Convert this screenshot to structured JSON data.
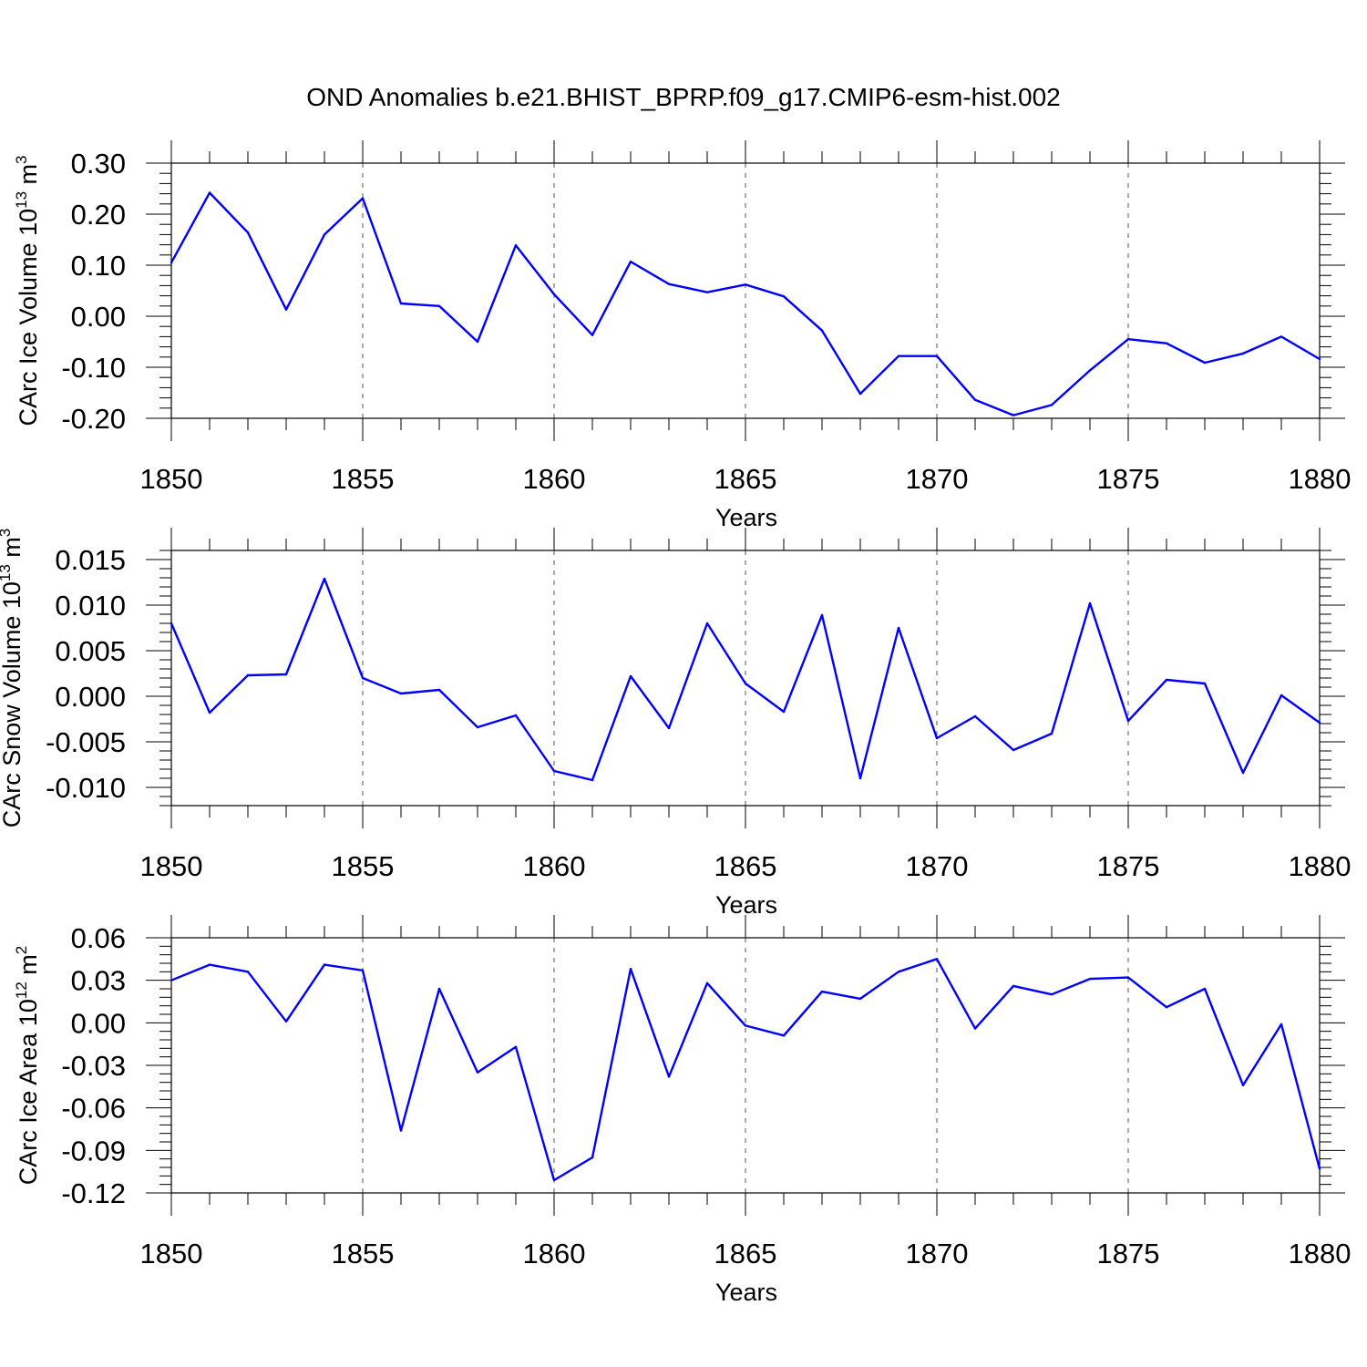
{
  "title": "OND Anomalies b.e21.BHIST_BPRP.f09_g17.CMIP6-esm-hist.002",
  "colors": {
    "line": "#0000ff",
    "axis": "#000000",
    "grid": "#555555"
  },
  "chart_data": [
    {
      "type": "line",
      "name": "ice-volume",
      "ylabel": "CArc Ice Volume 10",
      "ylabel_exp": "13",
      "ylabel_unit": " m",
      "ylabel_unit_exp": "3",
      "xlabel": "Years",
      "xlim": [
        1850,
        1880
      ],
      "ylim": [
        -0.2,
        0.3
      ],
      "x_ticks": [
        1850,
        1855,
        1860,
        1865,
        1870,
        1875,
        1880
      ],
      "x_tick_labels": [
        "1850",
        "1855",
        "1860",
        "1865",
        "1870",
        "1875",
        "1880"
      ],
      "y_ticks": [
        -0.2,
        -0.1,
        0.0,
        0.1,
        0.2,
        0.3
      ],
      "y_tick_labels": [
        "-0.20",
        "-0.10",
        "0.00",
        "0.10",
        "0.20",
        "0.30"
      ],
      "grid": "vertical dashed",
      "x": [
        1850,
        1851,
        1852,
        1853,
        1854,
        1855,
        1856,
        1857,
        1858,
        1859,
        1860,
        1861,
        1862,
        1863,
        1864,
        1865,
        1866,
        1867,
        1868,
        1869,
        1870,
        1871,
        1872,
        1873,
        1874,
        1875,
        1876,
        1877,
        1878,
        1879,
        1880
      ],
      "values": [
        0.105,
        0.242,
        0.164,
        0.013,
        0.16,
        0.231,
        0.025,
        0.02,
        -0.05,
        0.139,
        0.043,
        -0.037,
        0.107,
        0.063,
        0.047,
        0.062,
        0.039,
        -0.028,
        -0.152,
        -0.078,
        -0.078,
        -0.164,
        -0.194,
        -0.174,
        -0.106,
        -0.045,
        -0.053,
        -0.091,
        -0.073,
        -0.04,
        -0.084
      ]
    },
    {
      "type": "line",
      "name": "snow-volume",
      "ylabel": "CArc Snow Volume 10",
      "ylabel_exp": "13",
      "ylabel_unit": " m",
      "ylabel_unit_exp": "3",
      "xlabel": "Years",
      "xlim": [
        1850,
        1880
      ],
      "ylim": [
        -0.012,
        0.016
      ],
      "x_ticks": [
        1850,
        1855,
        1860,
        1865,
        1870,
        1875,
        1880
      ],
      "x_tick_labels": [
        "1850",
        "1855",
        "1860",
        "1865",
        "1870",
        "1875",
        "1880"
      ],
      "y_ticks": [
        -0.01,
        -0.005,
        0.0,
        0.005,
        0.01,
        0.015
      ],
      "y_tick_labels": [
        "-0.010",
        "-0.005",
        "0.000",
        "0.005",
        "0.010",
        "0.015"
      ],
      "grid": "vertical dashed",
      "x": [
        1850,
        1851,
        1852,
        1853,
        1854,
        1855,
        1856,
        1857,
        1858,
        1859,
        1860,
        1861,
        1862,
        1863,
        1864,
        1865,
        1866,
        1867,
        1868,
        1869,
        1870,
        1871,
        1872,
        1873,
        1874,
        1875,
        1876,
        1877,
        1878,
        1879,
        1880
      ],
      "values": [
        0.008,
        -0.0018,
        0.0023,
        0.0024,
        0.0129,
        0.002,
        0.0003,
        0.0007,
        -0.0034,
        -0.0021,
        -0.0082,
        -0.0092,
        0.0022,
        -0.0035,
        0.008,
        0.0014,
        -0.0017,
        0.0089,
        -0.009,
        0.0075,
        -0.0046,
        -0.0022,
        -0.0059,
        -0.0041,
        0.0102,
        -0.0027,
        0.0018,
        0.0014,
        -0.0084,
        0.0001,
        -0.0029
      ]
    },
    {
      "type": "line",
      "name": "ice-area",
      "ylabel": "CArc Ice Area 10",
      "ylabel_exp": "12",
      "ylabel_unit": " m",
      "ylabel_unit_exp": "2",
      "xlabel": "Years",
      "xlim": [
        1850,
        1880
      ],
      "ylim": [
        -0.12,
        0.06
      ],
      "x_ticks": [
        1850,
        1855,
        1860,
        1865,
        1870,
        1875,
        1880
      ],
      "x_tick_labels": [
        "1850",
        "1855",
        "1860",
        "1865",
        "1870",
        "1875",
        "1880"
      ],
      "y_ticks": [
        -0.12,
        -0.09,
        -0.06,
        -0.03,
        0.0,
        0.03,
        0.06
      ],
      "y_tick_labels": [
        "-0.12",
        "-0.09",
        "-0.06",
        "-0.03",
        "0.00",
        "0.03",
        "0.06"
      ],
      "grid": "vertical dashed",
      "x": [
        1850,
        1851,
        1852,
        1853,
        1854,
        1855,
        1856,
        1857,
        1858,
        1859,
        1860,
        1861,
        1862,
        1863,
        1864,
        1865,
        1866,
        1867,
        1868,
        1869,
        1870,
        1871,
        1872,
        1873,
        1874,
        1875,
        1876,
        1877,
        1878,
        1879,
        1880
      ],
      "values": [
        0.03,
        0.041,
        0.036,
        0.001,
        0.041,
        0.037,
        -0.076,
        0.024,
        -0.035,
        -0.017,
        -0.111,
        -0.095,
        0.038,
        -0.038,
        0.028,
        -0.002,
        -0.009,
        0.022,
        0.017,
        0.036,
        0.045,
        -0.004,
        0.026,
        0.02,
        0.031,
        0.032,
        0.011,
        0.024,
        -0.044,
        -0.001,
        -0.103
      ]
    }
  ]
}
